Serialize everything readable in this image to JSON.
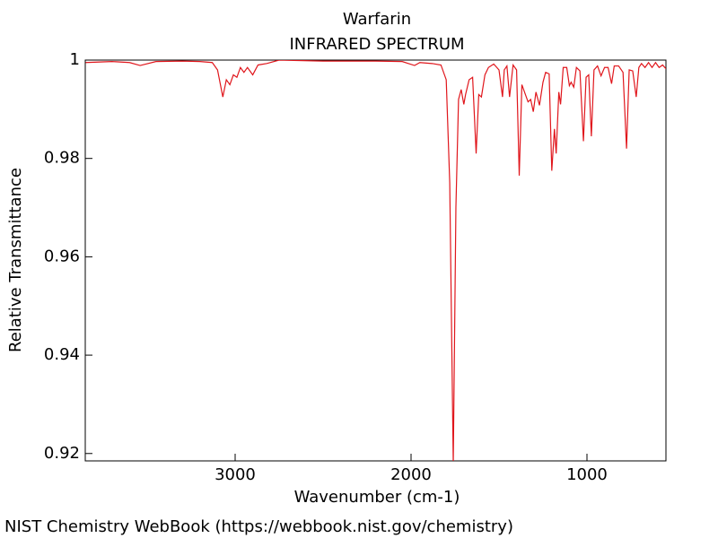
{
  "chart_data": {
    "type": "line",
    "title": "Warfarin",
    "subtitle": "INFRARED SPECTRUM",
    "x_label": "Wavenumber (cm-1)",
    "y_label": "Relative Transmittance",
    "x": [
      3850,
      3700,
      3600,
      3540,
      3450,
      3300,
      3200,
      3130,
      3100,
      3070,
      3050,
      3030,
      3010,
      2990,
      2970,
      2950,
      2930,
      2900,
      2870,
      2820,
      2750,
      2500,
      2200,
      2050,
      1980,
      1950,
      1880,
      1830,
      1800,
      1780,
      1760,
      1745,
      1730,
      1715,
      1700,
      1690,
      1670,
      1650,
      1630,
      1615,
      1600,
      1580,
      1560,
      1530,
      1500,
      1480,
      1470,
      1455,
      1440,
      1420,
      1400,
      1385,
      1370,
      1355,
      1335,
      1320,
      1305,
      1290,
      1270,
      1250,
      1235,
      1215,
      1200,
      1185,
      1175,
      1160,
      1150,
      1135,
      1115,
      1100,
      1090,
      1075,
      1060,
      1040,
      1020,
      1005,
      990,
      975,
      960,
      940,
      920,
      900,
      880,
      860,
      845,
      820,
      795,
      775,
      760,
      740,
      720,
      705,
      690,
      670,
      650,
      630,
      610,
      590,
      570,
      550
    ],
    "series": [
      {
        "name": "Warfarin",
        "color": "#e0161c",
        "values": [
          0.9995,
          0.9997,
          0.9995,
          0.9989,
          0.9997,
          0.9998,
          0.9997,
          0.9995,
          0.998,
          0.9925,
          0.996,
          0.995,
          0.997,
          0.9965,
          0.9985,
          0.9975,
          0.9985,
          0.997,
          0.999,
          0.9993,
          1.0,
          0.9998,
          0.9998,
          0.9997,
          0.9989,
          0.9995,
          0.9993,
          0.999,
          0.996,
          0.975,
          0.918,
          0.97,
          0.992,
          0.994,
          0.991,
          0.993,
          0.996,
          0.9965,
          0.981,
          0.993,
          0.9925,
          0.997,
          0.9985,
          0.9992,
          0.998,
          0.9925,
          0.998,
          0.9988,
          0.9925,
          0.999,
          0.998,
          0.9765,
          0.995,
          0.9935,
          0.9915,
          0.992,
          0.9895,
          0.9935,
          0.9908,
          0.9955,
          0.9975,
          0.9972,
          0.9775,
          0.986,
          0.981,
          0.9935,
          0.991,
          0.9985,
          0.9985,
          0.9948,
          0.9955,
          0.9945,
          0.9985,
          0.9978,
          0.9835,
          0.9965,
          0.997,
          0.9845,
          0.998,
          0.9988,
          0.9968,
          0.9985,
          0.9985,
          0.9952,
          0.9988,
          0.9988,
          0.9975,
          0.982,
          0.998,
          0.9978,
          0.9925,
          0.9985,
          0.9993,
          0.9985,
          0.9995,
          0.9985,
          0.9995,
          0.9985,
          0.999,
          0.9982
        ]
      }
    ],
    "xlim": [
      3852,
      551
    ],
    "xticks": [
      3000,
      2000,
      1000
    ],
    "ylim": [
      0.9185,
      1
    ],
    "yticks": [
      0.92,
      0.94,
      0.96,
      0.98,
      1
    ]
  },
  "footer": "NIST Chemistry WebBook (https://webbook.nist.gov/chemistry)"
}
